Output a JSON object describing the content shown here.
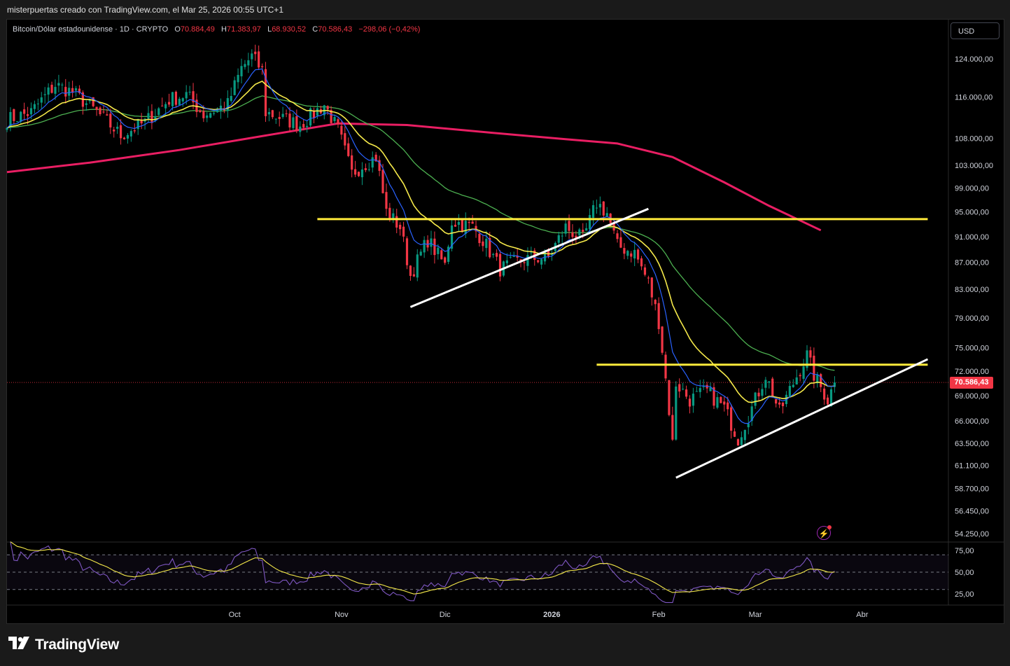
{
  "header": {
    "credit": "misterpuertas creado con TradingView.com, el Mar 25, 2026 00:55 UTC+1"
  },
  "symbol": {
    "name": "Bitcoin/Dólar estadounidense · 1D · CRYPTO",
    "o_label": "O",
    "o_value": "70.884,49",
    "h_label": "H",
    "h_value": "71.383,97",
    "l_label": "L",
    "l_value": "68.930,52",
    "c_label": "C",
    "c_value": "70.586,43",
    "change": "−298,06 (−0,42%)"
  },
  "currency_button": "USD",
  "last_price": "70.586,43",
  "brand": "TradingView",
  "colors": {
    "up": "#089981",
    "down": "#f23645",
    "ema_fast": "#2962ff",
    "ema_mid": "#f5e94a",
    "ema_slow": "#4caf50",
    "ema_long": "#e91e63",
    "resistance": "#ffeb3b",
    "trendline": "#ffffff",
    "rsi": "#7e57c2",
    "rsi_ma": "#f5e94a"
  },
  "chart_data": {
    "type": "candlestick",
    "y_ticks": [
      "124.000,00",
      "116.000,00",
      "108.000,00",
      "103.000,00",
      "99.000,00",
      "95.000,00",
      "91.000,00",
      "87.000,00",
      "83.000,00",
      "79.000,00",
      "75.000,00",
      "72.000,00",
      "69.000,00",
      "66.000,00",
      "63.500,00",
      "61.100,00",
      "58.700,00",
      "56.450,00",
      "54.250,00"
    ],
    "y_tick_values": [
      124000,
      116000,
      108000,
      103000,
      99000,
      95000,
      91000,
      87000,
      83000,
      79000,
      75000,
      72000,
      69000,
      66000,
      63500,
      61100,
      58700,
      56450,
      54250
    ],
    "x_ticks": [
      "Oct",
      "Nov",
      "Dic",
      "2026",
      "Feb",
      "Mar",
      "Abr"
    ],
    "x_tick_dates": [
      "2025-10-01",
      "2025-11-01",
      "2025-12-01",
      "2026-01-01",
      "2026-02-01",
      "2026-03-01",
      "2026-04-01"
    ],
    "x_range": [
      "2025-07-27",
      "2026-04-26"
    ],
    "y_scale": "log",
    "key_levels": [
      {
        "name": "resistance-high",
        "price": 93800,
        "from": "2025-10-25",
        "to": "2026-04-20"
      },
      {
        "name": "resistance-low",
        "price": 72800,
        "from": "2026-01-14",
        "to": "2026-04-20"
      }
    ],
    "trendlines": [
      {
        "from_date": "2025-11-21",
        "from_price": 80500,
        "to_date": "2026-01-29",
        "to_price": 95500
      },
      {
        "from_date": "2026-02-06",
        "from_price": 59800,
        "to_date": "2026-04-20",
        "to_price": 73500
      }
    ],
    "indicator": {
      "name": "RSI",
      "y_ticks": [
        "75,00",
        "50,00",
        "25,00"
      ],
      "y_tick_values": [
        75,
        50,
        25
      ],
      "bands": [
        70,
        50,
        30
      ]
    },
    "ema_long_points": [
      [
        "2025-07-27",
        101800
      ],
      [
        "2025-08-20",
        103500
      ],
      [
        "2025-09-15",
        105800
      ],
      [
        "2025-10-10",
        108500
      ],
      [
        "2025-10-31",
        110800
      ],
      [
        "2025-11-20",
        110500
      ],
      [
        "2025-12-15",
        109000
      ],
      [
        "2026-01-05",
        107800
      ],
      [
        "2026-01-20",
        107000
      ],
      [
        "2026-02-05",
        104500
      ],
      [
        "2026-02-20",
        100000
      ],
      [
        "2026-03-05",
        96000
      ],
      [
        "2026-03-20",
        92000
      ]
    ],
    "price_path": [
      [
        "2025-07-27",
        111500
      ],
      [
        "2025-08-03",
        113000
      ],
      [
        "2025-08-10",
        118500
      ],
      [
        "2025-08-15",
        117000
      ],
      [
        "2025-08-22",
        113000
      ],
      [
        "2025-08-29",
        108500
      ],
      [
        "2025-09-05",
        111000
      ],
      [
        "2025-09-12",
        115500
      ],
      [
        "2025-09-17",
        116500
      ],
      [
        "2025-09-22",
        112500
      ],
      [
        "2025-09-29",
        114500
      ],
      [
        "2025-10-03",
        122000
      ],
      [
        "2025-10-06",
        124500
      ],
      [
        "2025-10-09",
        121500
      ],
      [
        "2025-10-10",
        113000
      ],
      [
        "2025-10-14",
        112000
      ],
      [
        "2025-10-20",
        110500
      ],
      [
        "2025-10-27",
        114500
      ],
      [
        "2025-10-31",
        109500
      ],
      [
        "2025-11-04",
        101500
      ],
      [
        "2025-11-07",
        103000
      ],
      [
        "2025-11-11",
        104500
      ],
      [
        "2025-11-14",
        95000
      ],
      [
        "2025-11-18",
        92500
      ],
      [
        "2025-11-21",
        85000
      ],
      [
        "2025-11-26",
        90500
      ],
      [
        "2025-12-01",
        86500
      ],
      [
        "2025-12-03",
        93500
      ],
      [
        "2025-12-09",
        92500
      ],
      [
        "2025-12-12",
        90500
      ],
      [
        "2025-12-17",
        86000
      ],
      [
        "2025-12-24",
        87500
      ],
      [
        "2025-12-31",
        87800
      ],
      [
        "2026-01-05",
        92500
      ],
      [
        "2026-01-10",
        90500
      ],
      [
        "2026-01-14",
        96500
      ],
      [
        "2026-01-17",
        94800
      ],
      [
        "2026-01-20",
        89500
      ],
      [
        "2026-01-25",
        88500
      ],
      [
        "2026-01-29",
        84000
      ],
      [
        "2026-02-01",
        78500
      ],
      [
        "2026-02-05",
        63500
      ],
      [
        "2026-02-06",
        70500
      ],
      [
        "2026-02-10",
        68500
      ],
      [
        "2026-02-15",
        69500
      ],
      [
        "2026-02-20",
        67500
      ],
      [
        "2026-02-24",
        64000
      ],
      [
        "2026-02-28",
        67500
      ],
      [
        "2026-03-04",
        71500
      ],
      [
        "2026-03-08",
        67000
      ],
      [
        "2026-03-12",
        70500
      ],
      [
        "2026-03-16",
        74000
      ],
      [
        "2026-03-18",
        71500
      ],
      [
        "2026-03-20",
        70000
      ],
      [
        "2026-03-22",
        68500
      ],
      [
        "2026-03-24",
        70586
      ]
    ]
  }
}
